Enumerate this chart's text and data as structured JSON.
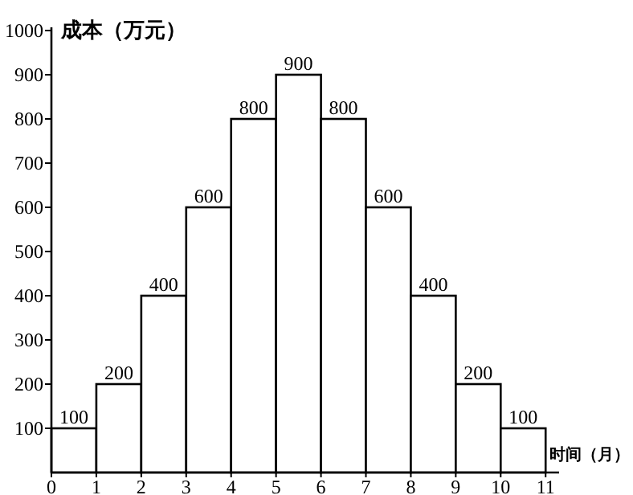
{
  "chart_data": {
    "type": "histogram",
    "xlabel": "时间（月）",
    "ylabel": "成本（万元）",
    "bins": [
      0,
      1,
      2,
      3,
      4,
      5,
      6,
      7,
      8,
      9,
      10,
      11
    ],
    "values": [
      100,
      200,
      400,
      600,
      800,
      900,
      800,
      600,
      400,
      200,
      100
    ],
    "color": "#ffffff",
    "xlim": [
      0,
      11.3
    ],
    "ylim": [
      0,
      1000
    ],
    "xticks": [
      0,
      1,
      2,
      3,
      4,
      5,
      6,
      7,
      8,
      9,
      10,
      11
    ],
    "yticks": [
      100,
      200,
      300,
      400,
      500,
      600,
      700,
      800,
      900,
      1000
    ],
    "data_labels": true
  }
}
